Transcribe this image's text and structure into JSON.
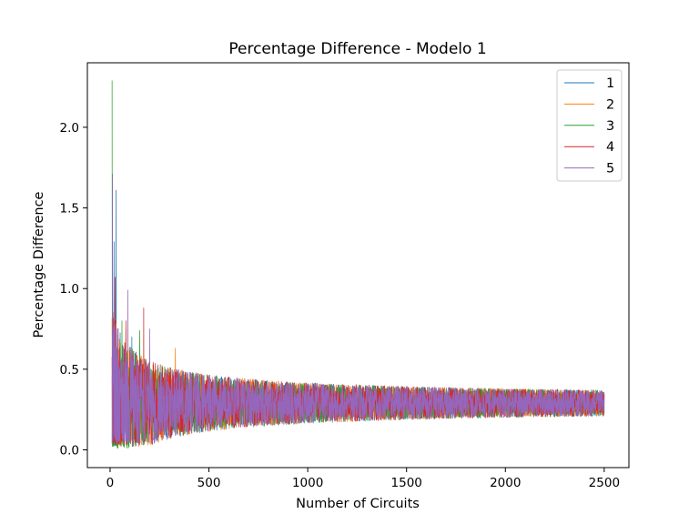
{
  "chart_data": {
    "type": "line",
    "title": "Percentage Difference - Modelo 1",
    "xlabel": "Number of Circuits",
    "ylabel": "Percentage Difference",
    "xlim": [
      -115,
      2625
    ],
    "ylim": [
      -0.11,
      2.4
    ],
    "x_ticks": [
      0,
      500,
      1000,
      1500,
      2000,
      2500
    ],
    "y_ticks": [
      0.0,
      0.5,
      1.0,
      1.5,
      2.0
    ],
    "x_tick_labels": [
      "0",
      "500",
      "1000",
      "1500",
      "2000",
      "2500"
    ],
    "y_tick_labels": [
      "0.0",
      "0.5",
      "1.0",
      "1.5",
      "2.0"
    ],
    "legend_position": "top-right",
    "grid": false,
    "x_range": [
      10,
      2500
    ],
    "converges_to": 0.29,
    "series": [
      {
        "name": "1",
        "color": "#1f77b4",
        "peaks": [
          [
            20,
            1.29
          ],
          [
            30,
            1.61
          ],
          [
            110,
            0.7
          ]
        ],
        "min_value": 0.02
      },
      {
        "name": "2",
        "color": "#ff7f0e",
        "peaks": [
          [
            15,
            0.85
          ],
          [
            80,
            0.75
          ],
          [
            330,
            0.63
          ]
        ],
        "min_value": 0.02
      },
      {
        "name": "3",
        "color": "#2ca02c",
        "peaks": [
          [
            10,
            2.29
          ],
          [
            60,
            0.8
          ],
          [
            150,
            0.74
          ]
        ],
        "min_value": 0.01
      },
      {
        "name": "4",
        "color": "#d62728",
        "peaks": [
          [
            25,
            1.07
          ],
          [
            80,
            0.8
          ],
          [
            170,
            0.88
          ]
        ],
        "min_value": 0.03
      },
      {
        "name": "5",
        "color": "#9467bd",
        "peaks": [
          [
            12,
            1.71
          ],
          [
            90,
            0.99
          ],
          [
            200,
            0.75
          ]
        ],
        "min_value": 0.04
      }
    ]
  }
}
